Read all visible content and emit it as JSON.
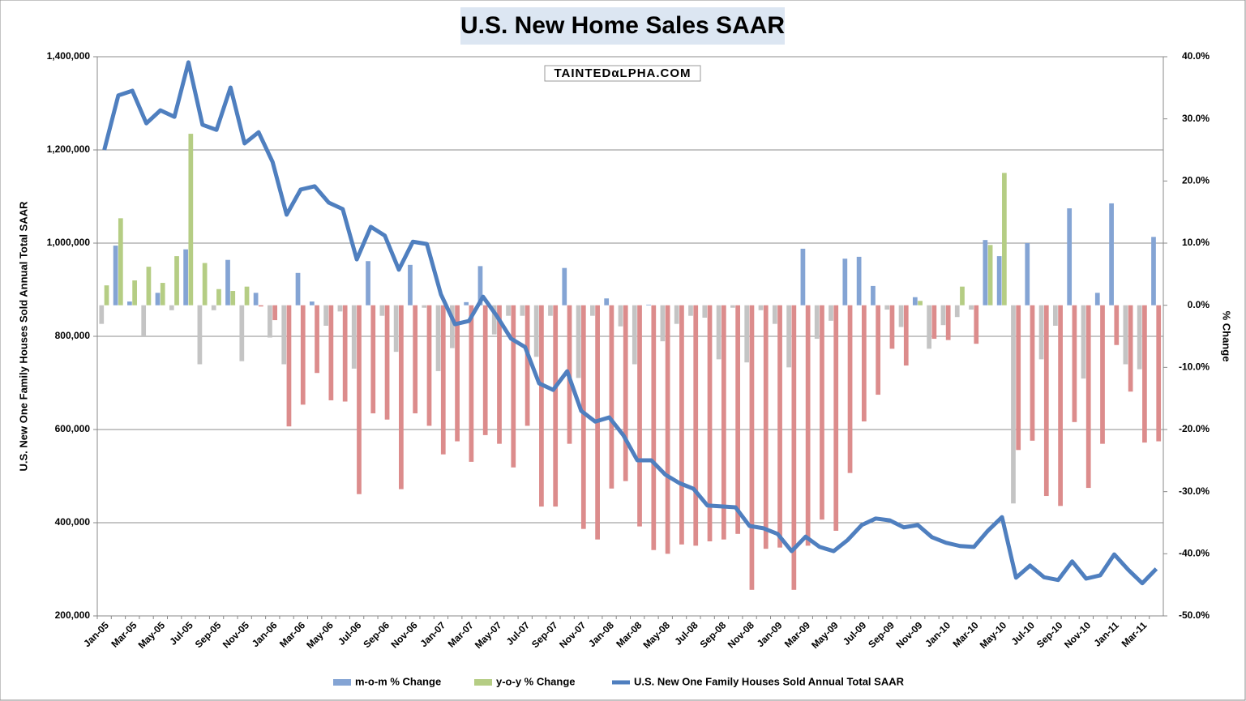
{
  "chart_data": {
    "type": "bar_line",
    "title": "U.S. New Home Sales SAAR",
    "watermark": "TAINTEDαLPHA.COM",
    "ylabel": "U.S. New One Family Houses Sold Annual Total SAAR",
    "y2label": "% Change",
    "categories": [
      "Jan-05",
      null,
      "Mar-05",
      null,
      "May-05",
      null,
      "Jul-05",
      null,
      "Sep-05",
      null,
      "Nov-05",
      null,
      "Jan-06",
      null,
      "Mar-06",
      null,
      "May-06",
      null,
      "Jul-06",
      null,
      "Sep-06",
      null,
      "Nov-06",
      null,
      "Jan-07",
      null,
      "Mar-07",
      null,
      "May-07",
      null,
      "Jul-07",
      null,
      "Sep-07",
      null,
      "Nov-07",
      null,
      "Jan-08",
      null,
      "Mar-08",
      null,
      "May-08",
      null,
      "Jul-08",
      null,
      "Sep-08",
      null,
      "Nov-08",
      null,
      "Jan-09",
      null,
      "Mar-09",
      null,
      "May-09",
      null,
      "Jul-09",
      null,
      "Sep-09",
      null,
      "Nov-09",
      null,
      "Jan-10",
      null,
      "Mar-10",
      null,
      "May-10",
      null,
      "Jul-10",
      null,
      "Sep-10",
      null,
      "Nov-10",
      null,
      "Jan-11",
      null,
      "Mar-11",
      null
    ],
    "series": [
      {
        "name": "m-o-m % Change",
        "type": "bar",
        "axis": "y2",
        "color": "#84a4d4",
        "negative_color": "#c4c4c4",
        "values": [
          -3,
          9.6,
          0.6,
          -5,
          2,
          -0.8,
          9,
          -9.5,
          -0.8,
          7.3,
          -9,
          2,
          -5.2,
          -9.5,
          5.2,
          0.6,
          -3.3,
          -1,
          -10.2,
          7.1,
          -1.7,
          -7.5,
          6.5,
          -0.4,
          -10.6,
          -6.9,
          0.5,
          6.3,
          -4.7,
          -1.7,
          -1.7,
          -8.3,
          -1.7,
          6,
          -11.7,
          -1.7,
          1.1,
          -3.4,
          -9.5,
          0.1,
          -5.8,
          -3,
          -1.7,
          -2,
          -8.7,
          -0.4,
          -9.2,
          -0.8,
          -3,
          -10,
          9.1,
          -5.4,
          -2.5,
          7.5,
          7.8,
          3.1,
          -0.7,
          -3.5,
          1.3,
          -7,
          -3.2,
          -1.9,
          -0.7,
          10.5,
          7.9,
          -31.9,
          10,
          -8.7,
          -3.3,
          15.6,
          -11.8,
          2,
          16.4,
          -9.5,
          -10.3,
          11
        ]
      },
      {
        "name": "y-o-y % Change",
        "type": "bar",
        "axis": "y2",
        "color": "#b5cd84",
        "negative_color": "#dc8c8c",
        "values": [
          3.2,
          14,
          4,
          6.2,
          3.6,
          7.9,
          27.6,
          6.8,
          2.6,
          2.3,
          3,
          -0.2,
          -2.4,
          -19.5,
          -16,
          -10.9,
          -15.3,
          -15.5,
          -30.4,
          -17.4,
          -18.4,
          -29.6,
          -17.4,
          -19.4,
          -24,
          -21.9,
          -25.2,
          -20.9,
          -22.3,
          -26.1,
          -19.4,
          -32.4,
          -32.4,
          -22.3,
          -36,
          -37.7,
          -29.5,
          -28.3,
          -35.6,
          -39.4,
          -40,
          -38.5,
          -38.7,
          -38,
          -37.7,
          -36.8,
          -45.8,
          -39.2,
          -39,
          -45.8,
          -38.7,
          -34.5,
          -36.3,
          -27,
          -18.7,
          -14.4,
          -7,
          -9.7,
          0.7,
          -5.4,
          -5.6,
          3,
          -6.2,
          9.7,
          21.3,
          -23.3,
          -21.8,
          -30.7,
          -32.3,
          -18.8,
          -29.4,
          -22.3,
          -6.4,
          -13.9,
          -22.1,
          -21.9
        ]
      },
      {
        "name": "U.S. New One Family Houses Sold Annual Total SAAR",
        "type": "line",
        "axis": "y",
        "color": "#4f7fbf",
        "values": [
          1200000,
          1317000,
          1327000,
          1257000,
          1285000,
          1271000,
          1388000,
          1254000,
          1243000,
          1334000,
          1214000,
          1238000,
          1174000,
          1061000,
          1115000,
          1122000,
          1087000,
          1073000,
          965000,
          1035000,
          1016000,
          943000,
          1003000,
          998000,
          890000,
          826000,
          833000,
          885000,
          843000,
          795000,
          777000,
          699000,
          685000,
          725000,
          640000,
          617000,
          626000,
          588000,
          534000,
          534000,
          503000,
          485000,
          473000,
          437000,
          435000,
          433000,
          393000,
          388000,
          376000,
          339000,
          370000,
          348000,
          339000,
          363000,
          395000,
          409000,
          405000,
          390000,
          395000,
          369000,
          357000,
          350000,
          348000,
          383000,
          412000,
          282000,
          308000,
          283000,
          277000,
          317000,
          280000,
          287000,
          332000,
          299000,
          270000,
          301000
        ]
      }
    ],
    "ylim": [
      200000,
      1400000
    ],
    "yticks": [
      {
        "value": 200000,
        "label": "200,000"
      },
      {
        "value": 400000,
        "label": "400,000"
      },
      {
        "value": 600000,
        "label": "600,000"
      },
      {
        "value": 800000,
        "label": "800,000"
      },
      {
        "value": 1000000,
        "label": "1,000,000"
      },
      {
        "value": 1200000,
        "label": "1,200,000"
      },
      {
        "value": 1400000,
        "label": "1,400,000"
      }
    ],
    "y2lim": [
      -50,
      40
    ],
    "y2ticks": [
      {
        "value": -50,
        "label": "-50.0%"
      },
      {
        "value": -40,
        "label": "-40.0%"
      },
      {
        "value": -30,
        "label": "-30.0%"
      },
      {
        "value": -20,
        "label": "-20.0%"
      },
      {
        "value": -10,
        "label": "-10.0%"
      },
      {
        "value": 0,
        "label": "0.0%"
      },
      {
        "value": 10,
        "label": "10.0%"
      },
      {
        "value": 20,
        "label": "20.0%"
      },
      {
        "value": 30,
        "label": "30.0%"
      },
      {
        "value": 40,
        "label": "40.0%"
      }
    ],
    "grid": true,
    "legend": "bottom"
  }
}
